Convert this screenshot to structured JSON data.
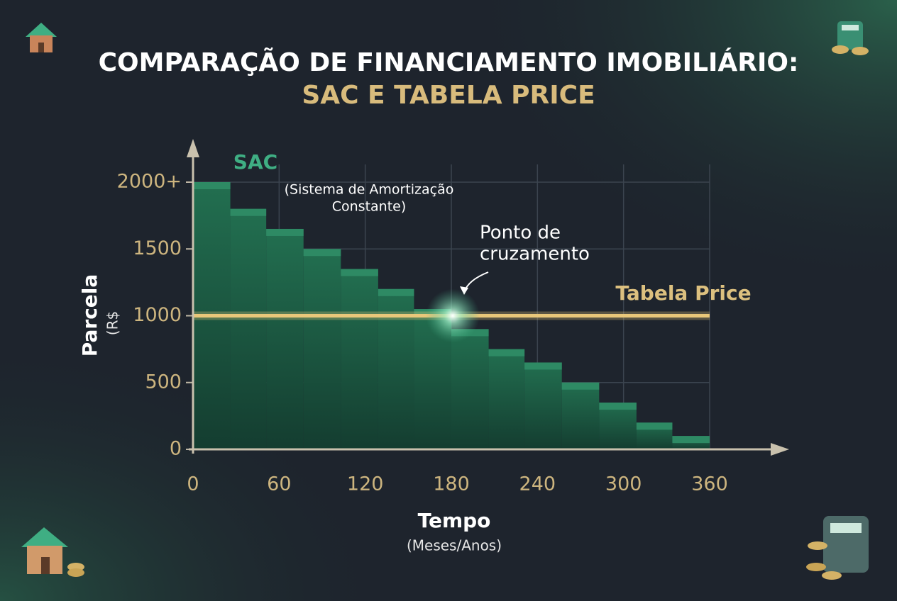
{
  "chart_data": {
    "type": "step-area",
    "title": "COMPARAÇÃO DE FINANCIAMENTO IMOBILIÁRIO:",
    "subtitle": "SAC E TABELA PRICE",
    "x_label": "Tempo",
    "x_label_note": "(Meses/Anos)",
    "y_label": "Parcela",
    "y_label_note": "(R$",
    "xlim": [
      0,
      360
    ],
    "ylim": [
      0,
      2000
    ],
    "xticks": [
      0,
      60,
      120,
      180,
      240,
      300,
      360
    ],
    "yticks": [
      0,
      500,
      1000,
      1500,
      {
        "value": 2000,
        "label": "2000+"
      }
    ],
    "grid": true,
    "series": [
      {
        "name": "SAC",
        "color": "#2e8a64",
        "x": [
          0,
          26,
          51,
          77,
          103,
          129,
          154,
          180,
          206,
          231,
          257,
          283,
          309,
          334
        ],
        "values": [
          2000,
          1800,
          1650,
          1500,
          1350,
          1200,
          1050,
          900,
          750,
          650,
          500,
          350,
          200,
          100
        ]
      },
      {
        "name": "Tabela Price",
        "color": "#e9c77a",
        "x": [
          0,
          360
        ],
        "values": [
          1000,
          1000
        ]
      }
    ],
    "annotations": {
      "sac_note": [
        "(Sistema de Amortização",
        "Constante)"
      ],
      "crossing": [
        "Ponto de",
        "cruzamento"
      ]
    }
  }
}
